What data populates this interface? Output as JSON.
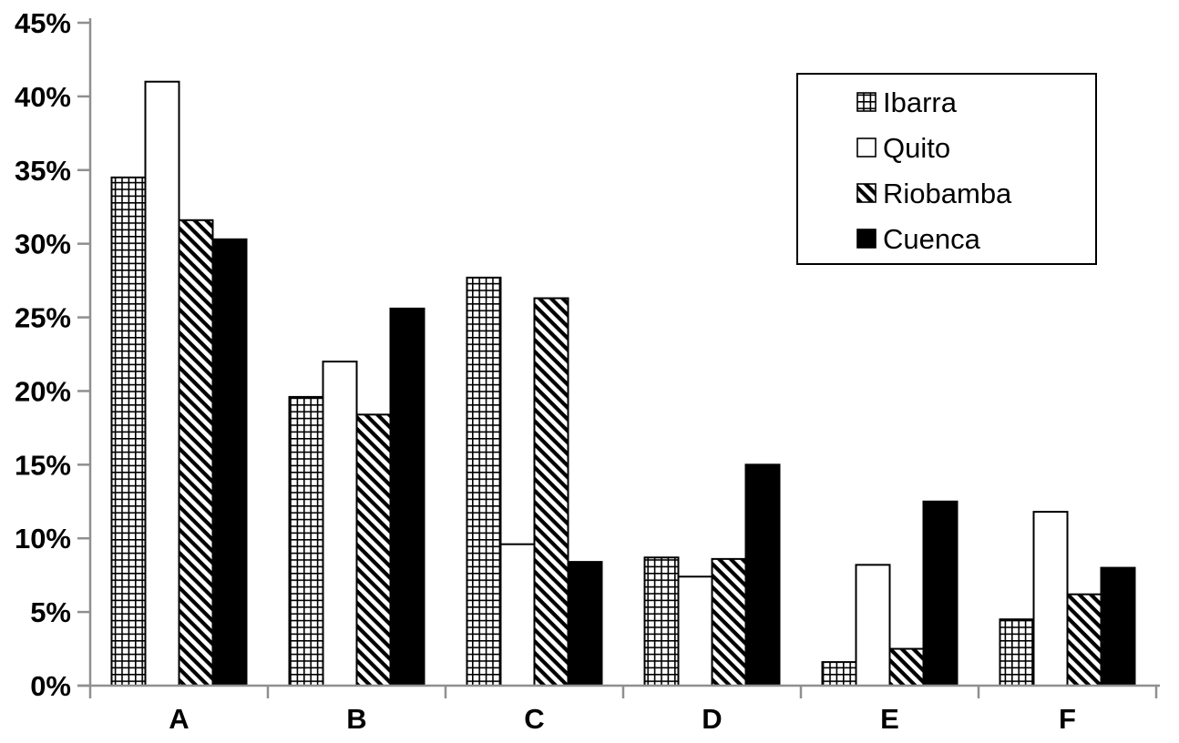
{
  "chart_data": {
    "type": "bar",
    "title": "",
    "xlabel": "",
    "ylabel": "",
    "categories": [
      "A",
      "B",
      "C",
      "D",
      "E",
      "F"
    ],
    "series": [
      {
        "name": "Ibarra",
        "pattern": "grid",
        "values": [
          34.5,
          19.6,
          27.7,
          8.7,
          1.6,
          4.5
        ]
      },
      {
        "name": "Quito",
        "pattern": "white",
        "values": [
          41.0,
          22.0,
          9.6,
          7.4,
          8.2,
          11.8
        ]
      },
      {
        "name": "Riobamba",
        "pattern": "diagonal",
        "values": [
          31.6,
          18.4,
          26.3,
          8.6,
          2.5,
          6.2
        ]
      },
      {
        "name": "Cuenca",
        "pattern": "black",
        "values": [
          30.3,
          25.6,
          8.4,
          15.0,
          12.5,
          8.0
        ]
      }
    ],
    "y_axis": {
      "min": 0,
      "max": 45,
      "step": 5,
      "tick_labels": [
        "0%",
        "5%",
        "10%",
        "15%",
        "20%",
        "25%",
        "30%",
        "35%",
        "40%",
        "45%"
      ]
    },
    "legend": {
      "position": "top-right",
      "entries": [
        "Ibarra",
        "Quito",
        "Riobamba",
        "Cuenca"
      ]
    },
    "grid": false,
    "colors": {
      "bar_stroke": "#000000",
      "bar_fill_solid": "#000000",
      "bar_fill_empty": "#ffffff",
      "axis": "#8f8f8f",
      "text": "#000000",
      "background": "#ffffff",
      "legend_border": "#000000"
    }
  }
}
